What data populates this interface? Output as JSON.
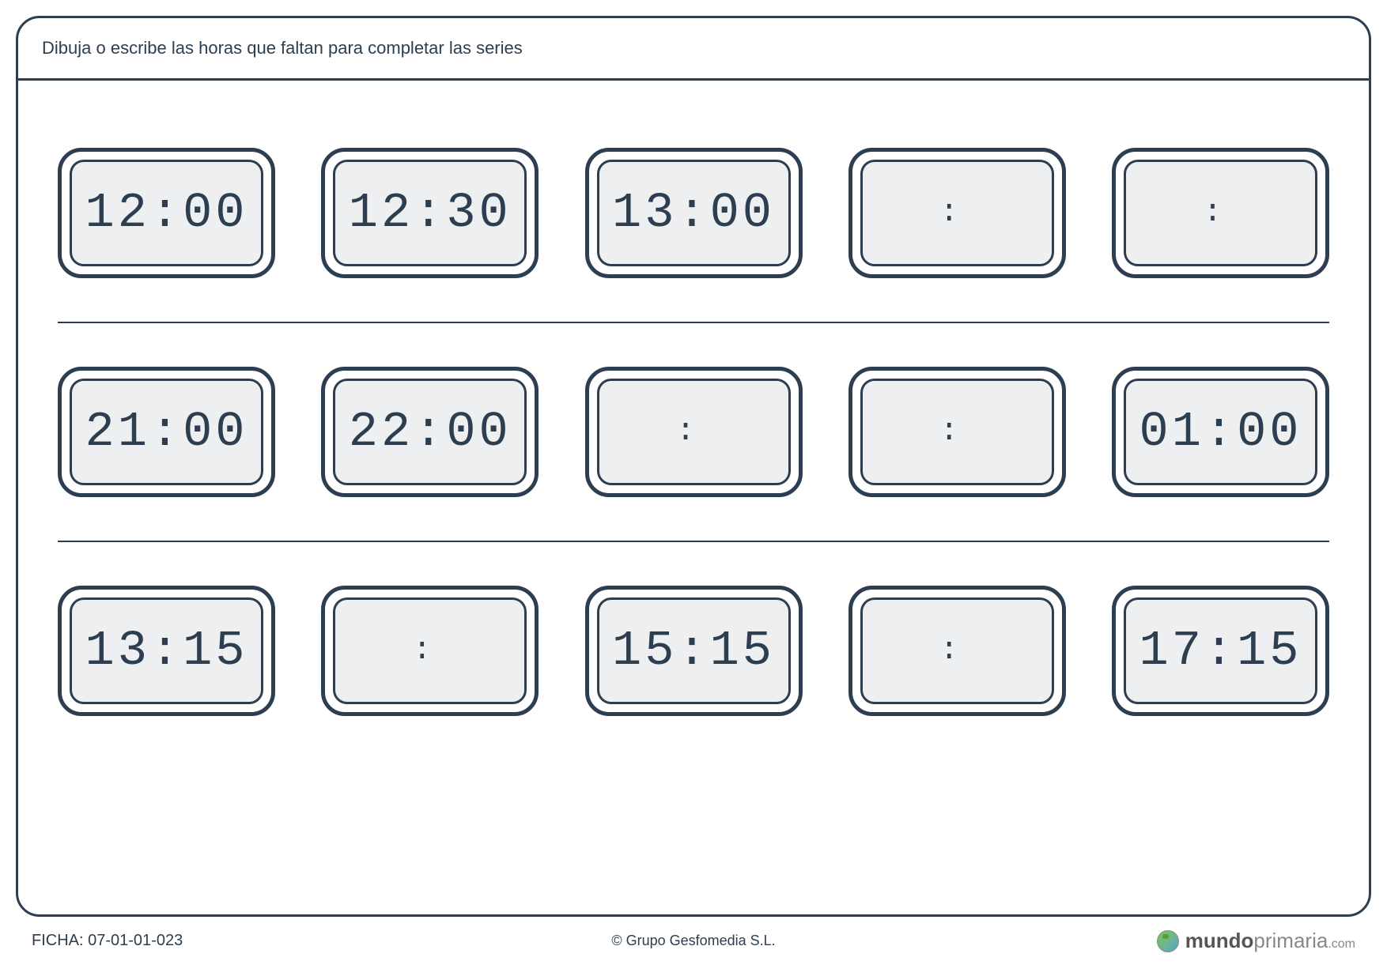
{
  "instruction": "Dibuja o escribe las horas que faltan para completar las series",
  "colors": {
    "border": "#2c3e50",
    "clock_bg": "#edeff1",
    "page_bg": "#ffffff",
    "text": "#2c3e50"
  },
  "rows": [
    {
      "clocks": [
        {
          "time": "12:00",
          "filled": true
        },
        {
          "time": "12:30",
          "filled": true
        },
        {
          "time": "13:00",
          "filled": true
        },
        {
          "time": ":",
          "filled": false
        },
        {
          "time": ":",
          "filled": false
        }
      ]
    },
    {
      "clocks": [
        {
          "time": "21:00",
          "filled": true
        },
        {
          "time": "22:00",
          "filled": true
        },
        {
          "time": ":",
          "filled": false
        },
        {
          "time": ":",
          "filled": false
        },
        {
          "time": "01:00",
          "filled": true
        }
      ]
    },
    {
      "clocks": [
        {
          "time": "13:15",
          "filled": true
        },
        {
          "time": ":",
          "filled": false
        },
        {
          "time": "15:15",
          "filled": true
        },
        {
          "time": ":",
          "filled": false
        },
        {
          "time": "17:15",
          "filled": true
        }
      ]
    }
  ],
  "footer": {
    "ficha_label": "FICHA: 07-01-01-023",
    "copyright": "© Grupo Gesfomedia S.L.",
    "brand_bold": "mundo",
    "brand_rest": "primaria",
    "brand_ext": ".com"
  }
}
